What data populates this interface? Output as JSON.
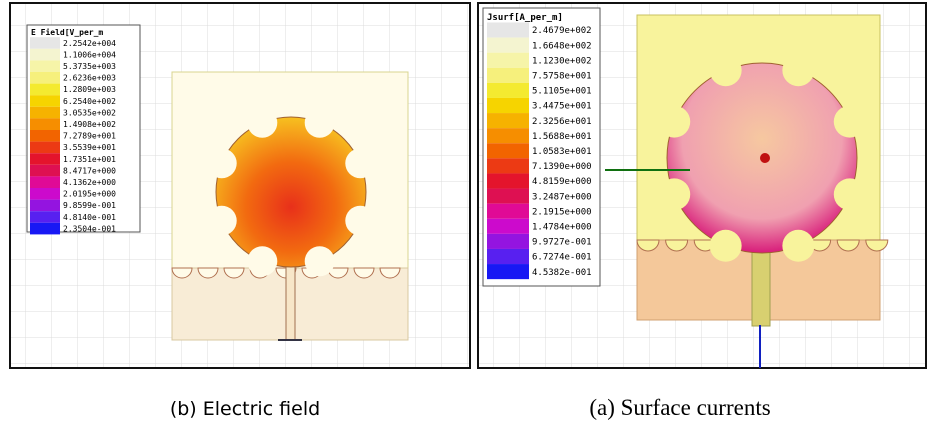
{
  "panels": [
    {
      "legend": {
        "title": "E Field[V_per_m",
        "values": [
          "2.2542e+004",
          "1.1006e+004",
          "5.3735e+003",
          "2.6236e+003",
          "1.2809e+003",
          "6.2540e+002",
          "3.0535e+002",
          "1.4908e+002",
          "7.2789e+001",
          "3.5539e+001",
          "1.7351e+001",
          "8.4717e+000",
          "4.1362e+000",
          "2.0195e+000",
          "9.8599e-001",
          "4.8140e-001",
          "2.3504e-001"
        ]
      },
      "caption": "(b) Electric field"
    },
    {
      "legend": {
        "title": "Jsurf[A_per_m]",
        "values": [
          "2.4679e+002",
          "1.6648e+002",
          "1.1230e+002",
          "7.5758e+001",
          "5.1105e+001",
          "3.4475e+001",
          "2.3256e+001",
          "1.5688e+001",
          "1.0583e+001",
          "7.1390e+000",
          "4.8159e+000",
          "3.2487e+000",
          "2.1915e+000",
          "1.4784e+000",
          "9.9727e-001",
          "6.7274e-001",
          "4.5382e-001"
        ]
      },
      "caption": "(a) Surface currents"
    }
  ]
}
